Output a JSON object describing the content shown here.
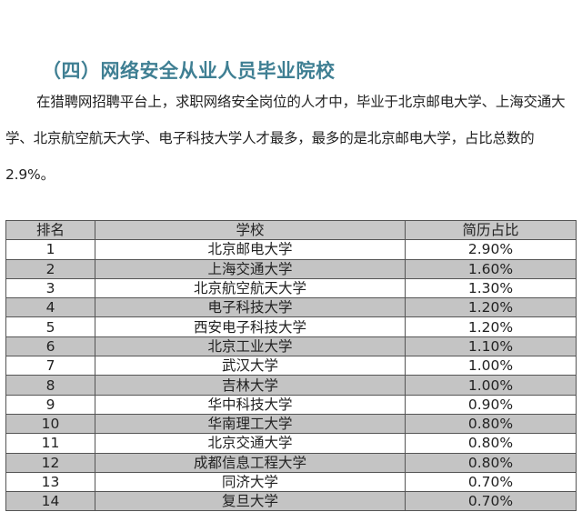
{
  "section_title": "（四）网络安全从业人员毕业院校",
  "paragraph": "在猎聘网招聘平台上，求职网络安全岗位的人才中，毕业于北京邮电大学、上海交通大学、北京航空航天大学、电子科技大学人才最多，最多的是北京邮电大学，占比总数的 2.9%。",
  "table": {
    "headers": [
      "排名",
      "学校",
      "简历占比"
    ],
    "rows": [
      {
        "rank": "1",
        "school": "北京邮电大学",
        "share": "2.90%"
      },
      {
        "rank": "2",
        "school": "上海交通大学",
        "share": "1.60%"
      },
      {
        "rank": "3",
        "school": "北京航空航天大学",
        "share": "1.30%"
      },
      {
        "rank": "4",
        "school": "电子科技大学",
        "share": "1.20%"
      },
      {
        "rank": "5",
        "school": "西安电子科技大学",
        "share": "1.20%"
      },
      {
        "rank": "6",
        "school": "北京工业大学",
        "share": "1.10%"
      },
      {
        "rank": "7",
        "school": "武汉大学",
        "share": "1.00%"
      },
      {
        "rank": "8",
        "school": "吉林大学",
        "share": "1.00%"
      },
      {
        "rank": "9",
        "school": "华中科技大学",
        "share": "0.90%"
      },
      {
        "rank": "10",
        "school": "华南理工大学",
        "share": "0.80%"
      },
      {
        "rank": "11",
        "school": "北京交通大学",
        "share": "0.80%"
      },
      {
        "rank": "12",
        "school": "成都信息工程大学",
        "share": "0.80%"
      },
      {
        "rank": "13",
        "school": "同济大学",
        "share": "0.70%"
      },
      {
        "rank": "14",
        "school": "复旦大学",
        "share": "0.70%"
      }
    ]
  },
  "colors": {
    "title": "#3f7f93",
    "header_bg": "#c8c8c8",
    "stripe_bg": "#c4c4c4"
  }
}
